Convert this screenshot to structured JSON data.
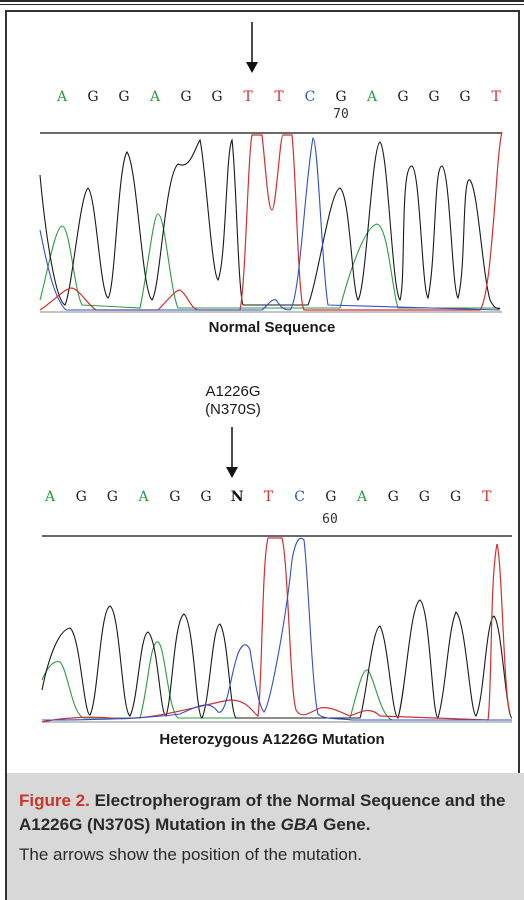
{
  "figure": {
    "caption_number": "Figure 2.",
    "caption_title_1": " Electropherogram of the Normal Sequence and the A1226G (N370S) Mutation in the ",
    "caption_gene": "GBA",
    "caption_title_2": " Gene.",
    "caption_body": "The arrows show the position of the mutation."
  },
  "normal_panel": {
    "label": "Normal Sequence",
    "position_label": "70",
    "bases": [
      {
        "b": "A",
        "c": "#2e9a40"
      },
      {
        "b": "G",
        "c": "#222"
      },
      {
        "b": "G",
        "c": "#222"
      },
      {
        "b": "A",
        "c": "#2e9a40"
      },
      {
        "b": "G",
        "c": "#222"
      },
      {
        "b": "G",
        "c": "#222"
      },
      {
        "b": "T",
        "c": "#d03030"
      },
      {
        "b": "T",
        "c": "#d03030"
      },
      {
        "b": "C",
        "c": "#3050c8"
      },
      {
        "b": "G",
        "c": "#222"
      },
      {
        "b": "A",
        "c": "#2e9a40"
      },
      {
        "b": "G",
        "c": "#222"
      },
      {
        "b": "G",
        "c": "#222"
      },
      {
        "b": "G",
        "c": "#222"
      },
      {
        "b": "T",
        "c": "#d03030"
      }
    ]
  },
  "mutation_panel": {
    "label": "Heterozygous A1226G Mutation",
    "mutation_label": "A1226G",
    "mutation_protein": "(N370S)",
    "position_label": "60",
    "bases": [
      {
        "b": "A",
        "c": "#2e9a40"
      },
      {
        "b": "G",
        "c": "#222"
      },
      {
        "b": "G",
        "c": "#222"
      },
      {
        "b": "A",
        "c": "#2e9a40"
      },
      {
        "b": "G",
        "c": "#222"
      },
      {
        "b": "G",
        "c": "#222"
      },
      {
        "b": "N",
        "c": "#111",
        "bold": true
      },
      {
        "b": "T",
        "c": "#d03030"
      },
      {
        "b": "C",
        "c": "#3050c8"
      },
      {
        "b": "G",
        "c": "#222"
      },
      {
        "b": "A",
        "c": "#2e9a40"
      },
      {
        "b": "G",
        "c": "#222"
      },
      {
        "b": "G",
        "c": "#222"
      },
      {
        "b": "G",
        "c": "#222"
      },
      {
        "b": "T",
        "c": "#d03030"
      }
    ]
  }
}
